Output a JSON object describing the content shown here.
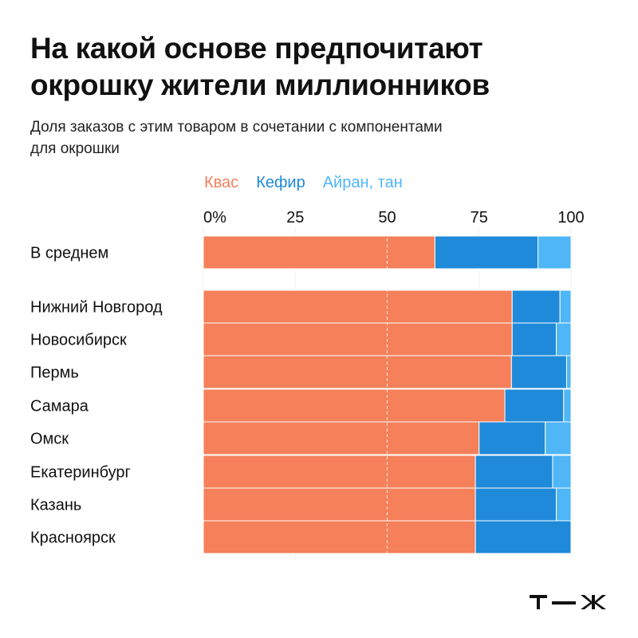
{
  "title_lines": [
    "На какой основе предпочитают",
    "окрошку жители миллионников"
  ],
  "subtitle_lines": [
    "Доля заказов с этим товаром в сочетании с компонентами",
    "для окрошки"
  ],
  "colors": {
    "kvas": "#f5805a",
    "kefir": "#1f8ad9",
    "ayran": "#4fb6f7",
    "background": "#ffffff",
    "text": "#111111"
  },
  "logo_text": "т—ж",
  "chart_data": {
    "type": "bar",
    "orientation": "horizontal",
    "stacked": true,
    "categories": [
      "В среднем",
      "Нижний Новгород",
      "Новосибирск",
      "Пермь",
      "Самара",
      "Омск",
      "Екатеринбург",
      "Казань",
      "Красноярск"
    ],
    "x_ticks": [
      "0%",
      "25",
      "50",
      "75",
      "100"
    ],
    "xlim": [
      0,
      100
    ],
    "grid": "vertical dashed at 50",
    "legend_position": "top",
    "series": [
      {
        "name": "Квас",
        "color": "#f5805a",
        "values": [
          63,
          84,
          84,
          83.8,
          82,
          75,
          74,
          74,
          74
        ]
      },
      {
        "name": "Кефир",
        "color": "#1f8ad9",
        "values": [
          28,
          13,
          12,
          15,
          16,
          18,
          21,
          22,
          26
        ]
      },
      {
        "name": "Айран, тан",
        "color": "#4fb6f7",
        "values": [
          9,
          3,
          4,
          1.2,
          2,
          7,
          5,
          4,
          0
        ]
      }
    ]
  }
}
